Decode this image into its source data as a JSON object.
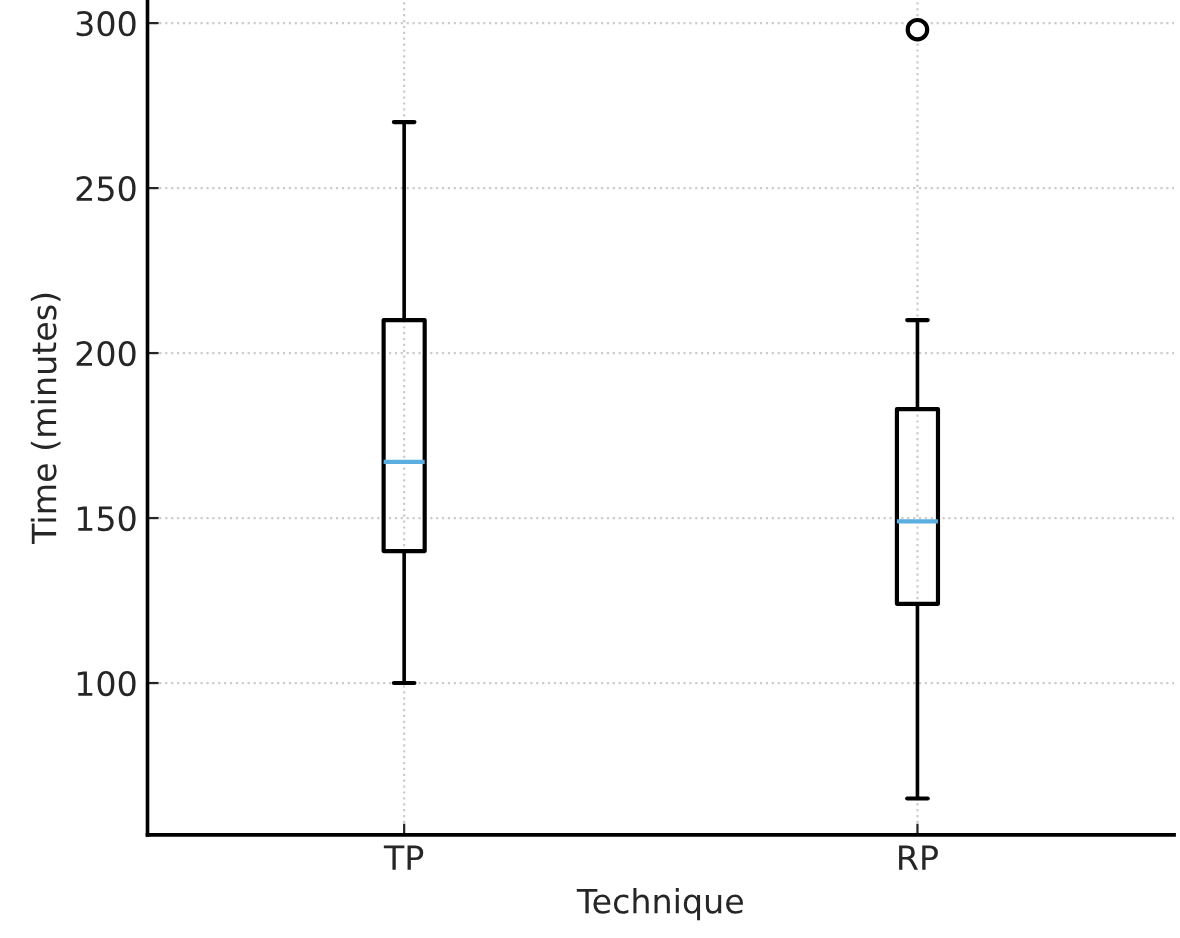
{
  "chart_data": {
    "type": "box",
    "xlabel": "Technique",
    "ylabel": "Time (minutes)",
    "categories": [
      "TP",
      "RP"
    ],
    "boxes": [
      {
        "low": 100,
        "q1": 140,
        "median": 167,
        "q3": 210,
        "high": 270
      },
      {
        "low": 65,
        "q1": 124,
        "median": 149,
        "q3": 183,
        "high": 210,
        "outliers": [
          298
        ]
      }
    ],
    "ylim": [
      54,
      307
    ],
    "yticks": [
      100,
      150,
      200,
      250,
      300
    ],
    "grid": true
  }
}
